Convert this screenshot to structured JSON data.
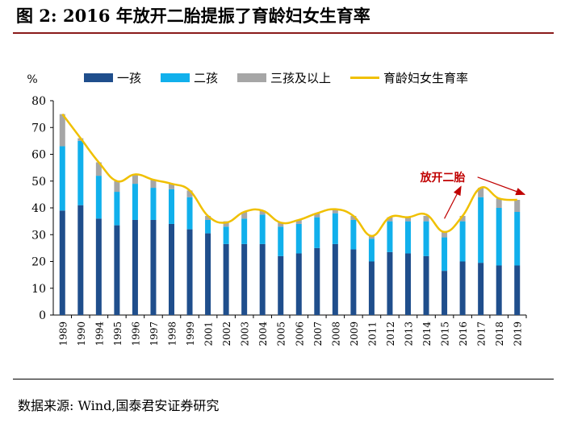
{
  "title": "图 2:  2016 年放开二胎提振了育龄妇女生育率",
  "source": "数据来源:  Wind,国泰君安证券研究",
  "legend": {
    "first": "一孩",
    "second": "二孩",
    "third": "三孩及以上",
    "rate": "育龄妇女生育率"
  },
  "annotation": "放开二胎",
  "colors": {
    "first": "#1f4e8c",
    "second": "#11b0ec",
    "third": "#a6a6a6",
    "rate": "#f0c000",
    "arrow": "#c00000",
    "title_rule": "#8a1a1a"
  },
  "chart_data": {
    "type": "bar",
    "stacked": true,
    "ylabel": "%",
    "ylim": [
      0,
      80
    ],
    "yticks": [
      0,
      10,
      20,
      30,
      40,
      50,
      60,
      70,
      80
    ],
    "grid": false,
    "legend_position": "top",
    "categories": [
      "1989",
      "1990",
      "1994",
      "1995",
      "1996",
      "1997",
      "1998",
      "1999",
      "2001",
      "2002",
      "2003",
      "2004",
      "2005",
      "2006",
      "2007",
      "2008",
      "2009",
      "2011",
      "2012",
      "2013",
      "2014",
      "2015",
      "2016",
      "2017",
      "2018",
      "2019"
    ],
    "series": [
      {
        "name": "一孩",
        "type": "bar",
        "values": [
          39,
          41,
          36,
          33.5,
          35.5,
          35.5,
          34,
          32,
          30.5,
          26.5,
          26.5,
          26.5,
          22,
          23,
          25,
          26.5,
          24.5,
          20,
          23.5,
          23,
          22,
          16.5,
          20,
          19.5,
          18.5,
          18.5
        ]
      },
      {
        "name": "二孩",
        "type": "bar",
        "values": [
          24,
          24,
          16,
          12.5,
          13.5,
          12,
          13,
          12,
          5,
          6.5,
          9.5,
          11,
          11,
          11,
          11.5,
          11.5,
          11,
          8.5,
          11.5,
          12,
          13,
          12.5,
          15,
          24.5,
          21.5,
          20
        ]
      },
      {
        "name": "三孩及以上",
        "type": "bar",
        "values": [
          12,
          1,
          5,
          4,
          3.5,
          3,
          2,
          2.5,
          1.5,
          2,
          2.5,
          1.5,
          1.5,
          1.5,
          1.5,
          1.5,
          1.5,
          1,
          1.5,
          1.5,
          2,
          2,
          2,
          3.5,
          3.5,
          4.5
        ]
      },
      {
        "name": "育龄妇女生育率",
        "type": "line",
        "values": [
          75,
          66,
          57,
          50,
          52.5,
          50.5,
          49,
          46.5,
          37,
          34.5,
          38.5,
          39,
          34.5,
          35.5,
          38,
          39.5,
          37,
          29.5,
          36.5,
          36.5,
          37.5,
          31,
          37,
          47.5,
          43.5,
          43
        ]
      }
    ]
  }
}
